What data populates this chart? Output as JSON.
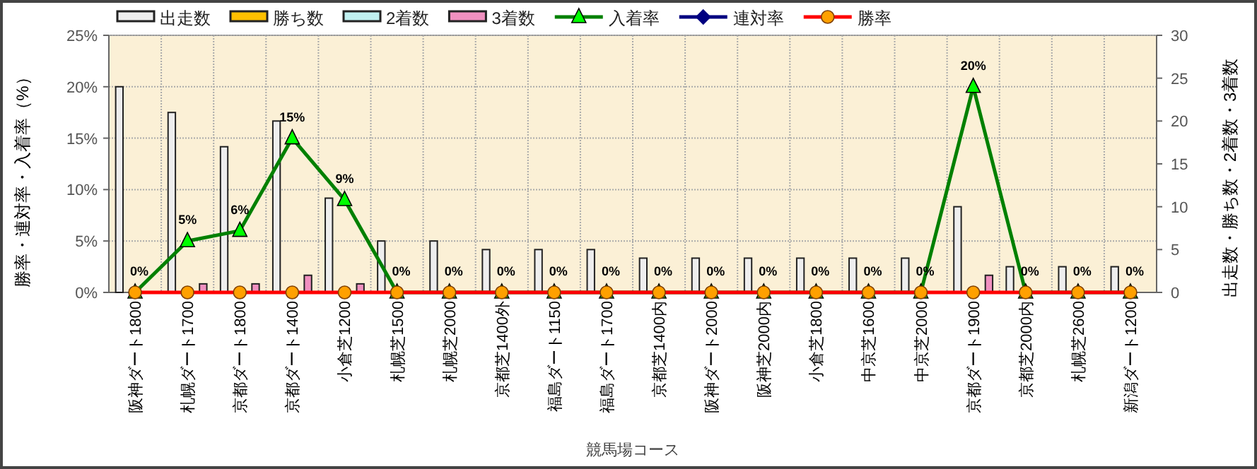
{
  "chart_data": {
    "type": "bar",
    "xlabel": "競馬場コース",
    "ylabel": "勝率・連対率・入着率（%）",
    "y2label": "出走数・勝ち数・2着数・3着数",
    "categories": [
      "阪神ダート1800",
      "札幌ダート1700",
      "京都ダート1800",
      "京都ダート1400",
      "小倉芝1200",
      "札幌芝1500",
      "札幌芝2000",
      "京都芝1400外",
      "福島ダート1150",
      "福島ダート1700",
      "京都芝1400内",
      "阪神ダート2000",
      "阪神芝2000内",
      "小倉芝1800",
      "中京芝1600",
      "中京芝2000",
      "京都ダート1900",
      "京都芝2000内",
      "札幌芝2600",
      "新潟ダート1200"
    ],
    "series": [
      {
        "name": "出走数",
        "axis": "y2",
        "color": "#eeeeee",
        "values": [
          24,
          21,
          17,
          20,
          11,
          6,
          6,
          5,
          5,
          5,
          4,
          4,
          4,
          4,
          4,
          4,
          10,
          3,
          3,
          3
        ]
      },
      {
        "name": "勝ち数",
        "axis": "y2",
        "color": "#ffc000",
        "values": [
          0,
          0,
          0,
          0,
          0,
          0,
          0,
          0,
          0,
          0,
          0,
          0,
          0,
          0,
          0,
          0,
          0,
          0,
          0,
          0
        ]
      },
      {
        "name": "2着数",
        "axis": "y2",
        "color": "#c0f0f0",
        "values": [
          0,
          0,
          0,
          0,
          0,
          0,
          0,
          0,
          0,
          0,
          0,
          0,
          0,
          0,
          0,
          0,
          0,
          0,
          0,
          0
        ]
      },
      {
        "name": "3着数",
        "axis": "y2",
        "color": "#f090c0",
        "values": [
          0,
          1,
          1,
          2,
          1,
          0,
          0,
          0,
          0,
          0,
          0,
          0,
          0,
          0,
          0,
          0,
          2,
          0,
          0,
          0
        ]
      },
      {
        "name": "入着率",
        "type": "line",
        "axis": "y",
        "marker": "triangle",
        "color": "#008000",
        "colors": [
          "#00ff00",
          "#00ff00",
          "#00ff00",
          "#00ff00",
          "#00ff00",
          "#00ff00",
          "#00ff00",
          "#00ff00",
          "#00ff00",
          "#00ff00",
          "#00ff00",
          "#00ff00",
          "#00ff00",
          "#00ff00",
          "#00ff00",
          "#00ff00",
          "#00ff00",
          "#00ff00",
          "#00ff00",
          "#00ff00"
        ],
        "values": [
          0,
          5,
          6,
          15,
          9,
          0,
          0,
          0,
          0,
          0,
          0,
          0,
          0,
          0,
          0,
          0,
          20,
          0,
          0,
          0
        ],
        "value_labels": [
          "0%",
          "5%",
          "6%",
          "15%",
          "9%",
          "0%",
          "0%",
          "0%",
          "0%",
          "0%",
          "0%",
          "0%",
          "0%",
          "0%",
          "0%",
          "0%",
          "20%",
          "0%",
          "0%",
          "0%"
        ]
      },
      {
        "name": "連対率",
        "type": "line",
        "marker": "diamond",
        "color": "#000080",
        "values": [
          null,
          null,
          null,
          null,
          null,
          null,
          null,
          null,
          null,
          null,
          null,
          null,
          null,
          null,
          null,
          null,
          null,
          null,
          null,
          null
        ]
      },
      {
        "name": "勝率",
        "type": "line",
        "axis": "y",
        "marker": "circle",
        "color": "#ff0000",
        "colors": [
          "#ffa000",
          "#ffa000",
          "#ffa000",
          "#ffa000",
          "#ffa000",
          "#ffa000",
          "#ffa000",
          "#ffa000",
          "#ffa000",
          "#ffa000",
          "#ffa000",
          "#ffa000",
          "#ffa000",
          "#ffa000",
          "#ffa000",
          "#ffa000",
          "#ffa000",
          "#ffa000",
          "#ffa000",
          "#ffa000"
        ],
        "values": [
          0,
          0,
          0,
          0,
          0,
          0,
          0,
          0,
          0,
          0,
          0,
          0,
          0,
          0,
          0,
          0,
          0,
          0,
          0,
          0
        ]
      }
    ],
    "ylim": [
      0,
      25
    ],
    "yticks": [
      {
        "value": 0,
        "label": "0%"
      },
      {
        "value": 5,
        "label": "5%"
      },
      {
        "value": 10,
        "label": "10%"
      },
      {
        "value": 15,
        "label": "15%"
      },
      {
        "value": 20,
        "label": "20%"
      },
      {
        "value": 25,
        "label": "25%"
      }
    ],
    "y2lim": [
      0,
      30
    ],
    "y2ticks": [
      0,
      5,
      10,
      15,
      20,
      25,
      30
    ],
    "grid": true,
    "legend": "top"
  }
}
